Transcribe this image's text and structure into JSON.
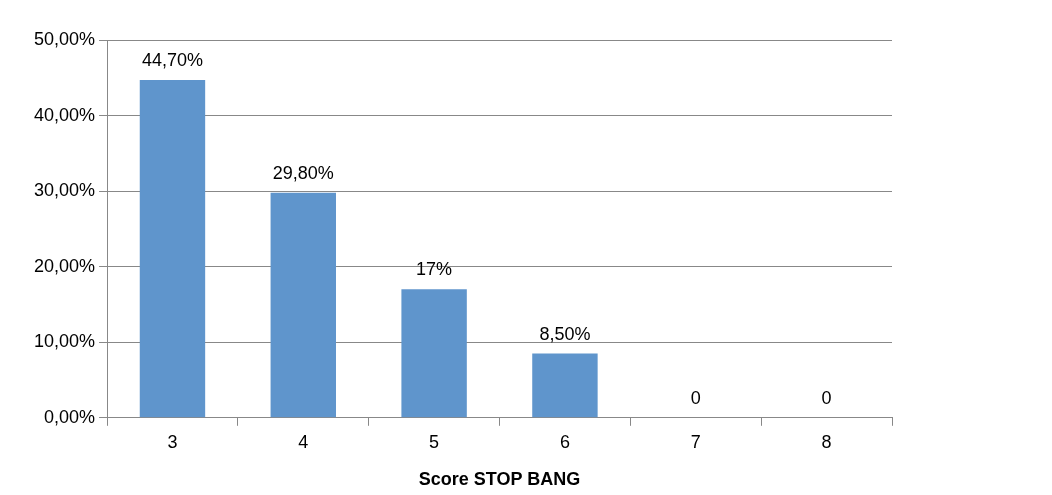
{
  "chart_data": {
    "type": "bar",
    "xlabel": "Score STOP BANG",
    "categories": [
      "3",
      "4",
      "5",
      "6",
      "7",
      "8"
    ],
    "values": [
      44.7,
      29.8,
      17,
      8.5,
      0,
      0
    ],
    "value_labels": [
      "44,70%",
      "29,80%",
      "17%",
      "8,50%",
      "0",
      "0"
    ],
    "color": "#5f95cc",
    "ylim": [
      0,
      50
    ],
    "yticks": [
      {
        "value": 0,
        "label": "0,00%"
      },
      {
        "value": 10,
        "label": "10,00%"
      },
      {
        "value": 20,
        "label": "20,00%"
      },
      {
        "value": 30,
        "label": "30,00%"
      },
      {
        "value": 40,
        "label": "40,00%"
      },
      {
        "value": 50,
        "label": "50,00%"
      }
    ],
    "grid": "y",
    "legend": false
  }
}
